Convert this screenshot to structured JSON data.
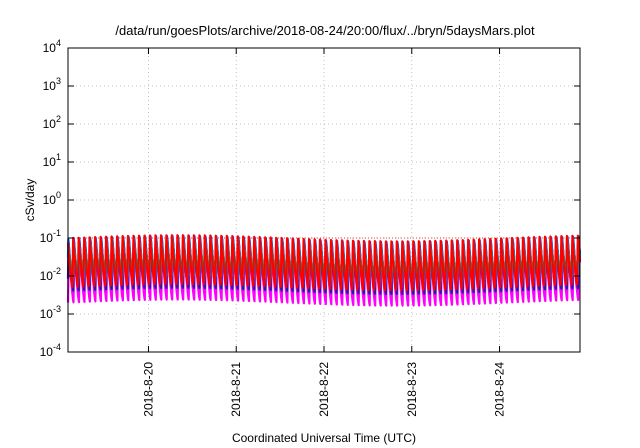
{
  "chart_data": {
    "type": "line",
    "title": "/data/run/goesPlots/archive/2018-08-24/20:00/flux/../bryn/5daysMars.plot",
    "xlabel": "Coordinated Universal Time (UTC)",
    "ylabel": "cSv/day",
    "x_range": [
      "2018-08-19 02:00",
      "2018-08-24 22:00"
    ],
    "x_ticks": [
      "2018-8-20",
      "2018-8-21",
      "2018-8-22",
      "2018-8-23",
      "2018-8-24"
    ],
    "x_tick_values": [
      "2018-08-20",
      "2018-08-21",
      "2018-08-22",
      "2018-08-23",
      "2018-08-24"
    ],
    "y_scale": "log",
    "ylim": [
      0.0001,
      10000
    ],
    "y_ticks": [
      {
        "base": "10",
        "exp": "-4"
      },
      {
        "base": "10",
        "exp": "-3"
      },
      {
        "base": "10",
        "exp": "-2"
      },
      {
        "base": "10",
        "exp": "-1"
      },
      {
        "base": "10",
        "exp": "0"
      },
      {
        "base": "10",
        "exp": "1"
      },
      {
        "base": "10",
        "exp": "2"
      },
      {
        "base": "10",
        "exp": "3"
      },
      {
        "base": "10",
        "exp": "4"
      }
    ],
    "grid": true,
    "reference_line": {
      "y": 0.1,
      "color": "#ff0000",
      "style": "dotted"
    },
    "oscillation_period_hours": 1.5,
    "series": [
      {
        "color": "#ff00ff",
        "peak": 0.06,
        "trough": 0.002
      },
      {
        "color": "#2020a0",
        "peak": 0.09,
        "trough": 0.004
      },
      {
        "color": "#0050ff",
        "peak": 0.1,
        "trough": 0.006
      },
      {
        "color": "#00c8c8",
        "peak": 0.08,
        "trough": 0.008
      },
      {
        "color": "#00a050",
        "peak": 0.07,
        "trough": 0.01
      },
      {
        "color": "#ff0000",
        "peak": 0.11,
        "trough": 0.005
      }
    ]
  }
}
